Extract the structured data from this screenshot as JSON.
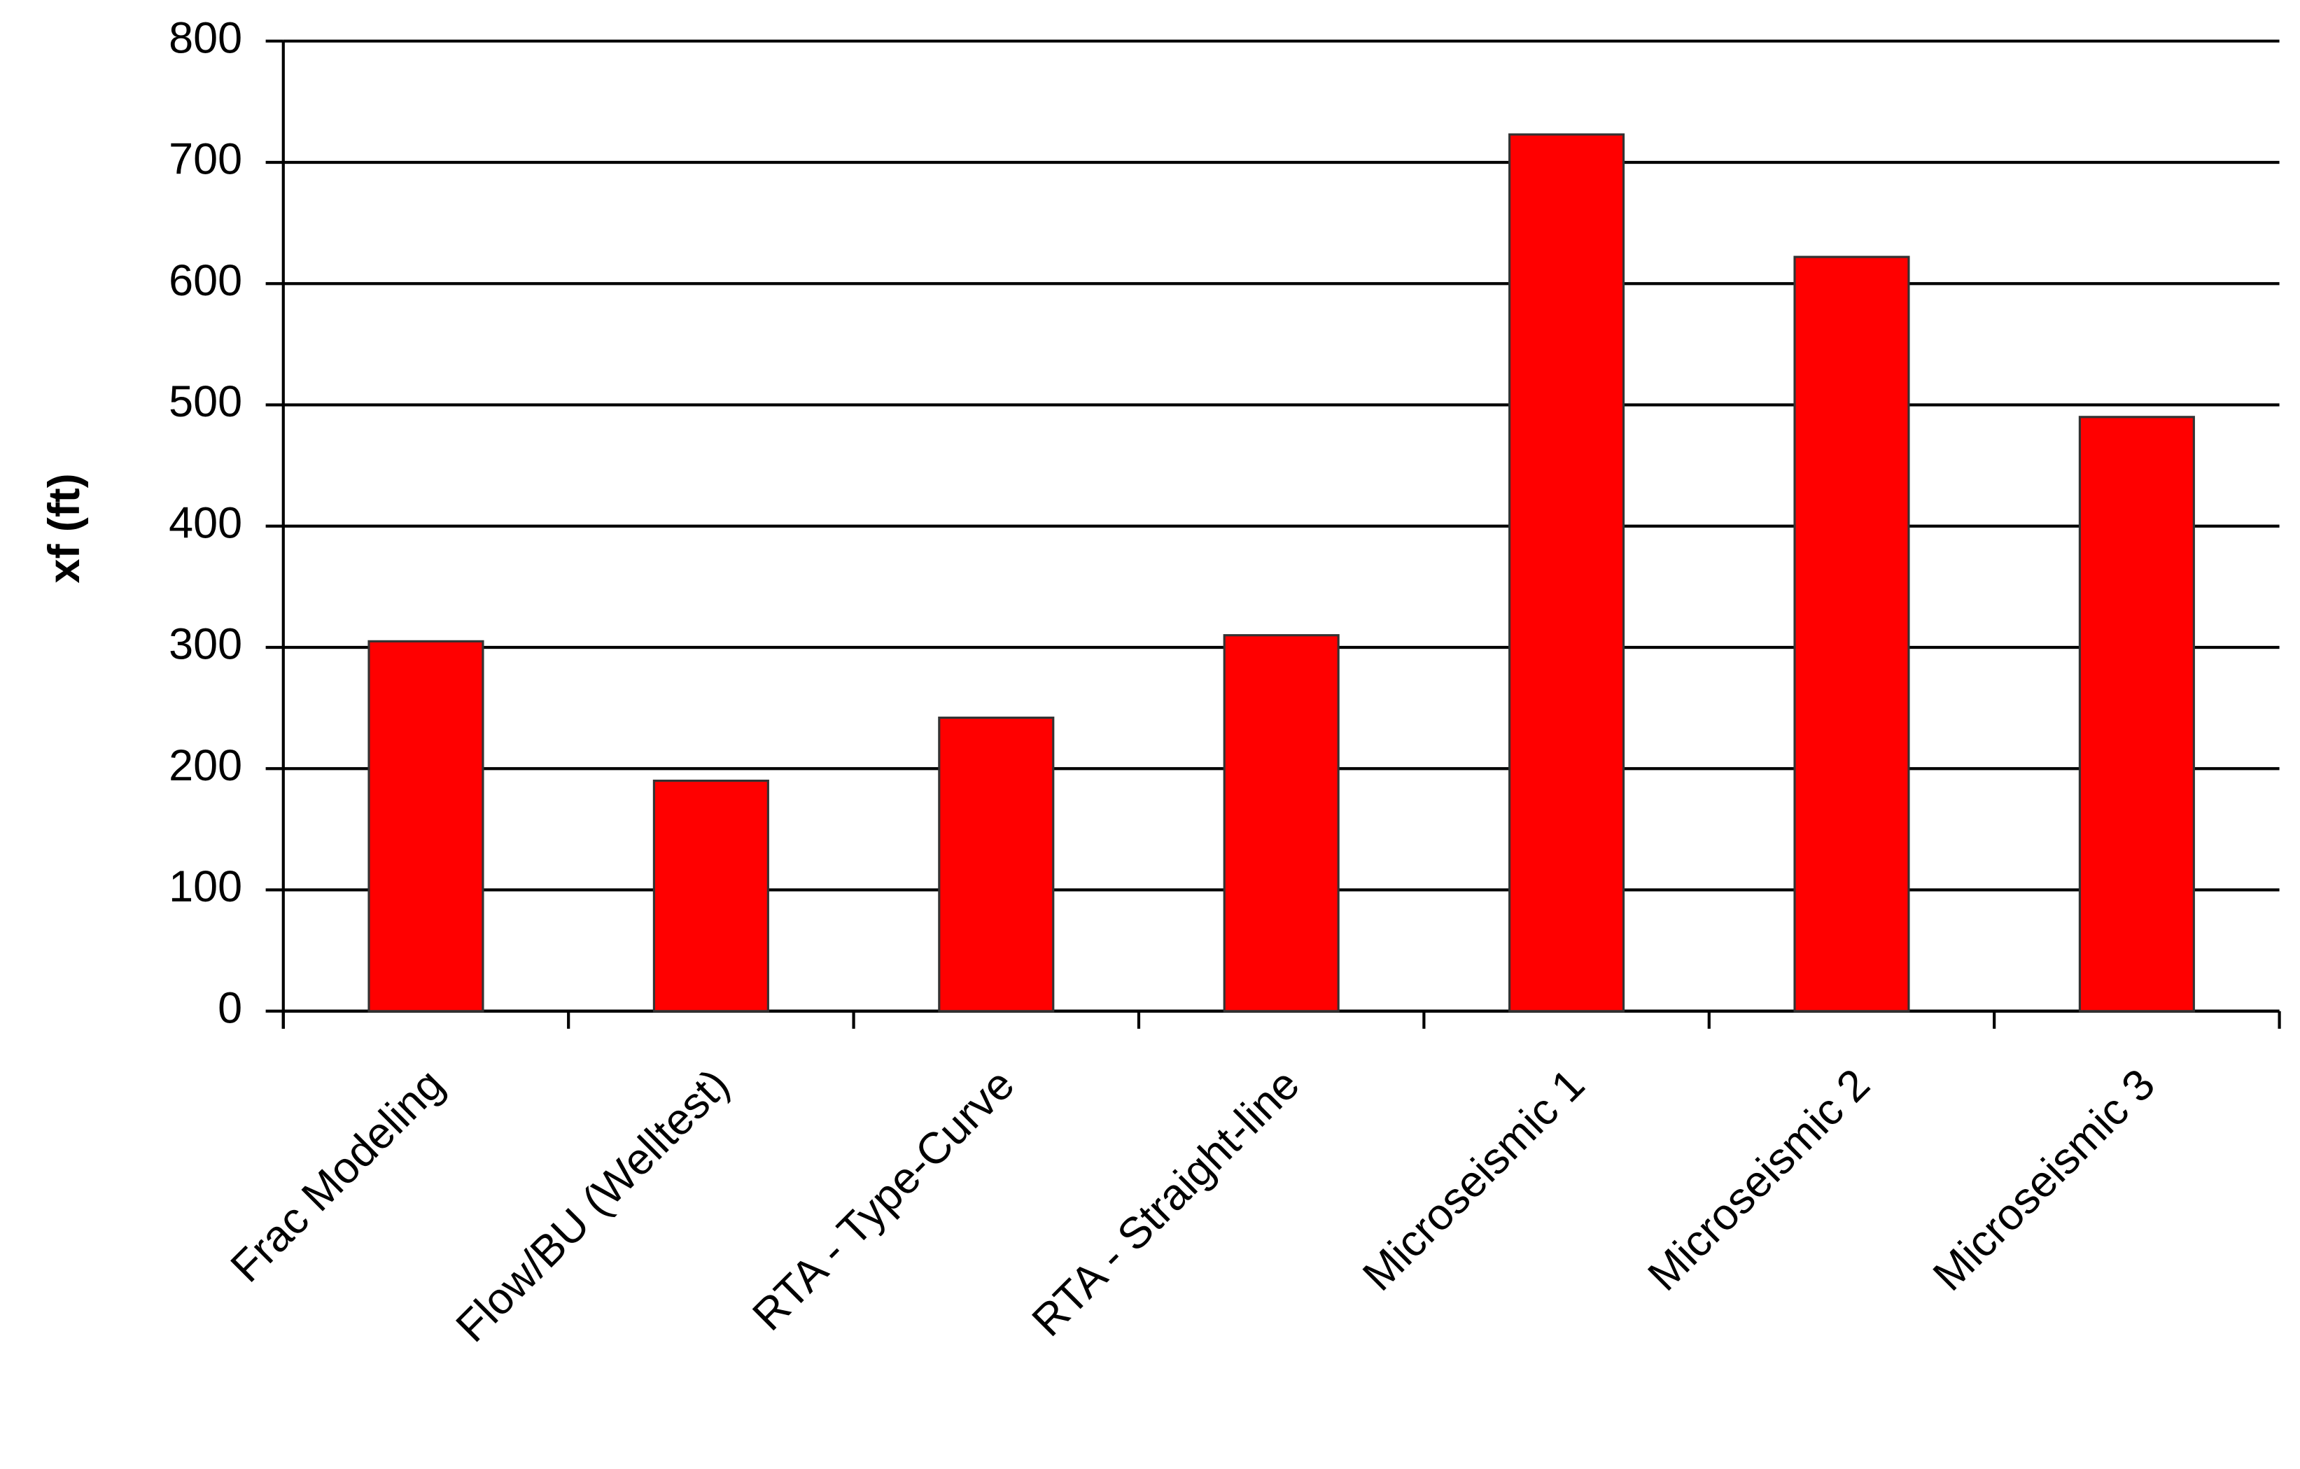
{
  "chart_data": {
    "type": "bar",
    "y_label": "xf (ft)",
    "categories": [
      "Frac Modeling",
      "Flow/BU (Welltest)",
      "RTA - Type-Curve",
      "RTA - Straight-line",
      "Microseismic 1",
      "Microseismic 2",
      "Microseismic 3"
    ],
    "values": [
      305,
      190,
      242,
      310,
      723,
      622,
      490
    ],
    "color": "#ff0000",
    "ylim": [
      0,
      800
    ],
    "yticks": [
      0,
      100,
      200,
      300,
      400,
      500,
      600,
      700,
      800
    ],
    "grid": true
  }
}
